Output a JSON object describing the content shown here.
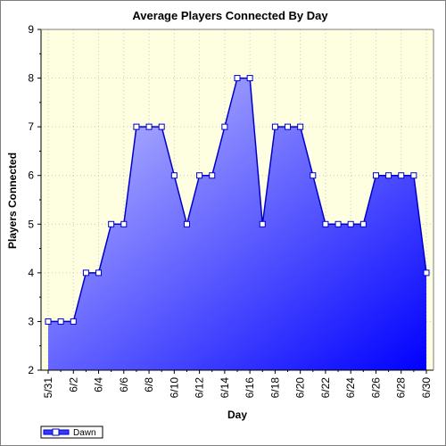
{
  "chart_data": {
    "type": "area",
    "title": "Average Players Connected By Day",
    "xlabel": "Day",
    "ylabel": "Players Connected",
    "ylim": [
      2,
      9
    ],
    "yticks": [
      2,
      3,
      4,
      5,
      6,
      7,
      8,
      9
    ],
    "x": [
      "5/31",
      "6/1",
      "6/2",
      "6/3",
      "6/4",
      "6/5",
      "6/6",
      "6/7",
      "6/8",
      "6/9",
      "6/10",
      "6/11",
      "6/12",
      "6/13",
      "6/14",
      "6/15",
      "6/16",
      "6/17",
      "6/18",
      "6/19",
      "6/20",
      "6/21",
      "6/22",
      "6/23",
      "6/24",
      "6/25",
      "6/26",
      "6/27",
      "6/28",
      "6/29",
      "6/30"
    ],
    "xtick_labels": [
      "5/31",
      "6/2",
      "6/4",
      "6/6",
      "6/8",
      "6/10",
      "6/12",
      "6/14",
      "6/16",
      "6/18",
      "6/20",
      "6/22",
      "6/24",
      "6/26",
      "6/28",
      "6/30"
    ],
    "series": [
      {
        "name": "Dawn",
        "values": [
          3,
          3,
          3,
          4,
          4,
          5,
          5,
          7,
          7,
          7,
          6,
          5,
          6,
          6,
          7,
          8,
          8,
          5,
          7,
          7,
          7,
          6,
          5,
          5,
          5,
          5,
          6,
          6,
          6,
          6,
          4
        ]
      }
    ],
    "grid": true,
    "legend": "bottom-left",
    "colors": {
      "plot_background": "#fefee0",
      "line": "#0000c8",
      "fill_light": "#c8c8ff",
      "fill_dark": "#0000ff",
      "marker_fill": "#ffffff"
    }
  }
}
